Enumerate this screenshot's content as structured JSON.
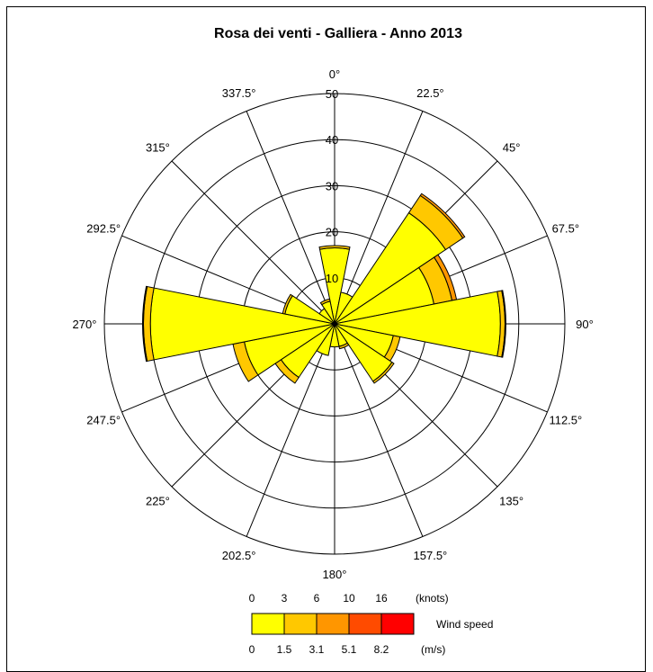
{
  "chart_data": {
    "type": "wind-rose",
    "title": "Rosa dei venti - Galliera - Anno 2013",
    "radial_max": 50,
    "radial_ticks": [
      "10",
      "20",
      "30",
      "40",
      "50"
    ],
    "direction_labels": [
      "0°",
      "22.5°",
      "45°",
      "67.5°",
      "90°",
      "112.5°",
      "135°",
      "157.5°",
      "180°",
      "202.5°",
      "225°",
      "247.5°",
      "270°",
      "292.5°",
      "315°",
      "337.5°"
    ],
    "sector_angles": [
      0,
      22.5,
      45,
      67.5,
      90,
      112.5,
      135,
      157.5,
      180,
      202.5,
      225,
      247.5,
      270,
      292.5,
      315,
      337.5
    ],
    "series": [
      {
        "name": "0 - 1.5 m/s",
        "color": "#ffff00",
        "values": [
          16.5,
          7,
          29,
          22,
          36,
          13,
          15,
          5,
          5,
          7,
          14,
          20,
          40,
          11,
          4,
          5
        ]
      },
      {
        "name": "1.5 - 3.1 m/s",
        "color": "#ffc800",
        "values": [
          0.5,
          0,
          4.5,
          4,
          1,
          1.5,
          0.5,
          0.5,
          0,
          0,
          1.5,
          2.5,
          1.5,
          0.5,
          0,
          0.5
        ]
      },
      {
        "name": "3.1 - 5.1 m/s",
        "color": "#ff9600",
        "values": [
          0,
          0,
          0.5,
          1,
          0.2,
          0,
          0,
          0,
          0,
          0,
          0,
          0,
          0.2,
          0,
          0,
          0
        ]
      },
      {
        "name": "5.1 - 8.2 m/s",
        "color": "#ff4b00",
        "values": [
          0,
          0,
          0,
          0,
          0,
          0,
          0,
          0,
          0,
          0,
          0,
          0,
          0,
          0,
          0,
          0
        ]
      },
      {
        "name": "> 8.2 m/s",
        "color": "#ff0000",
        "values": [
          0,
          0,
          0,
          0,
          0,
          0,
          0,
          0,
          0,
          0,
          0,
          0,
          0,
          0,
          0,
          0
        ]
      }
    ],
    "legend": {
      "knots_labels": [
        "0",
        "3",
        "6",
        "10",
        "16"
      ],
      "knots_unit": "(knots)",
      "ms_labels": [
        "0",
        "1.5",
        "3.1",
        "5.1",
        "8.2"
      ],
      "ms_unit": "(m/s)",
      "caption": "Wind speed",
      "colors": [
        "#ffff00",
        "#ffc800",
        "#ff9600",
        "#ff4b00",
        "#ff0000"
      ]
    }
  }
}
